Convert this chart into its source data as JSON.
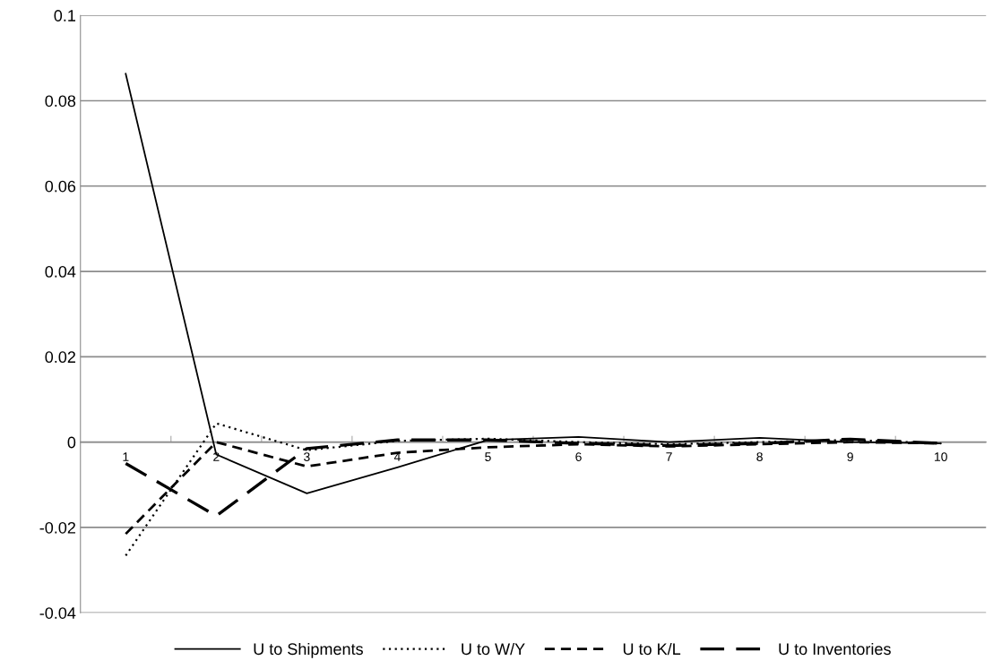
{
  "chart_data": {
    "type": "line",
    "categories": [
      "1",
      "2",
      "3",
      "4",
      "5",
      "6",
      "7",
      "8",
      "9",
      "10"
    ],
    "series": [
      {
        "name": "U to Shipments",
        "color": "#000000",
        "line_style": "solid",
        "values": [
          0.0863,
          -0.0029,
          -0.012,
          -0.0059,
          0.0005,
          0.0012,
          0.0,
          0.001,
          0.0,
          -0.0003
        ]
      },
      {
        "name": "U to W/Y",
        "color": "#000000",
        "line_style": "dotted",
        "values": [
          -0.0266,
          0.0044,
          -0.0019,
          0.0003,
          0.0008,
          0.0,
          -0.0005,
          0.0,
          0.0005,
          -0.0003
        ]
      },
      {
        "name": "U to K/L",
        "color": "#000000",
        "line_style": "dashed",
        "values": [
          -0.0215,
          0.0,
          -0.0057,
          -0.0025,
          -0.0012,
          -0.0005,
          -0.001,
          -0.0005,
          0.0,
          -0.0003
        ]
      },
      {
        "name": "U to Inventories",
        "color": "#000000",
        "line_style": "long dashed",
        "values": [
          -0.005,
          -0.0173,
          -0.0015,
          0.0005,
          0.0005,
          -0.0003,
          -0.0008,
          -0.0003,
          0.0007,
          -0.0003
        ]
      }
    ],
    "ylim": [
      -0.04,
      0.1
    ],
    "yticks": [
      {
        "value": -0.04,
        "label": "-0.04"
      },
      {
        "value": -0.02,
        "label": "-0.02"
      },
      0,
      0.02,
      0.04,
      0.06,
      0.08,
      0.1
    ],
    "grid": "y",
    "legend": "bottom",
    "marker": "none"
  }
}
